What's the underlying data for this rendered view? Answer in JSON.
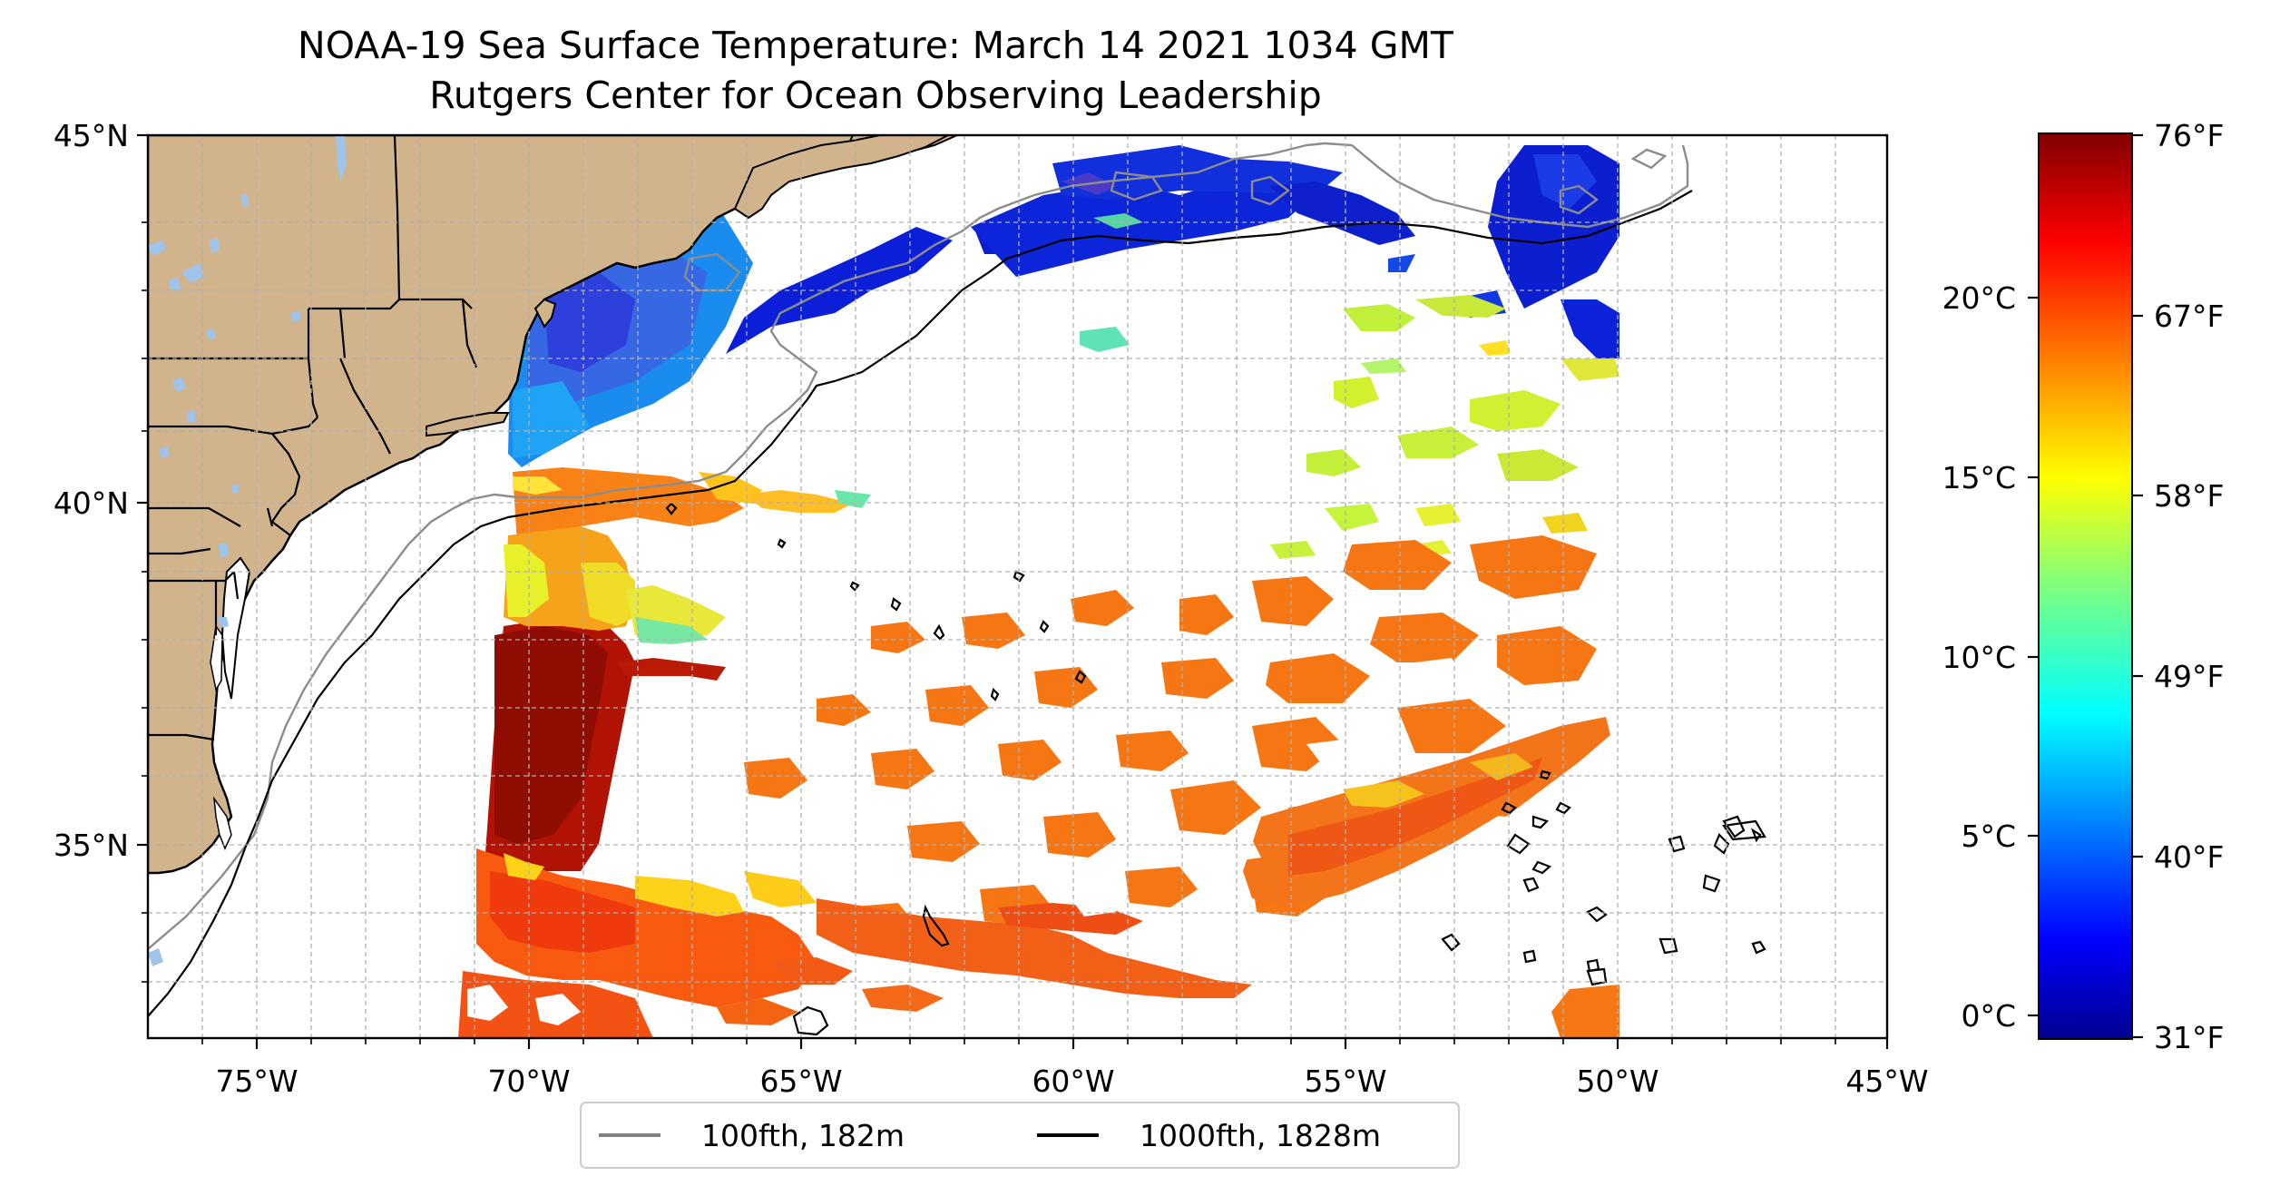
{
  "title": {
    "line1": "NOAA-19 Sea Surface Temperature: March 14 2021 1034 GMT",
    "line2": "Rutgers Center for Ocean Observing Leadership"
  },
  "map": {
    "lon_range": [
      -77,
      -45
    ],
    "lat_range": [
      32.3,
      45
    ],
    "lon_ticks": [
      "75°W",
      "70°W",
      "65°W",
      "60°W",
      "55°W",
      "50°W",
      "45°W"
    ],
    "lat_ticks": [
      "35°N",
      "40°N",
      "45°N"
    ],
    "grid": "dashed, 1° spacing",
    "land_color": "#d2b48c",
    "lake_color": "#9fc3e9"
  },
  "legend": {
    "placement": "bottom-center, below map",
    "items": [
      {
        "label": "100fth, 182m",
        "color": "#808080"
      },
      {
        "label": "1000fth, 1828m",
        "color": "#000000"
      }
    ]
  },
  "colorbar": {
    "colormap": "jet",
    "celsius_ticks": [
      "0°C",
      "5°C",
      "10°C",
      "15°C",
      "20°C"
    ],
    "fahrenheit_ticks": [
      "31°F",
      "40°F",
      "49°F",
      "58°F",
      "67°F",
      "76°F"
    ],
    "range_f": [
      31,
      76
    ]
  }
}
